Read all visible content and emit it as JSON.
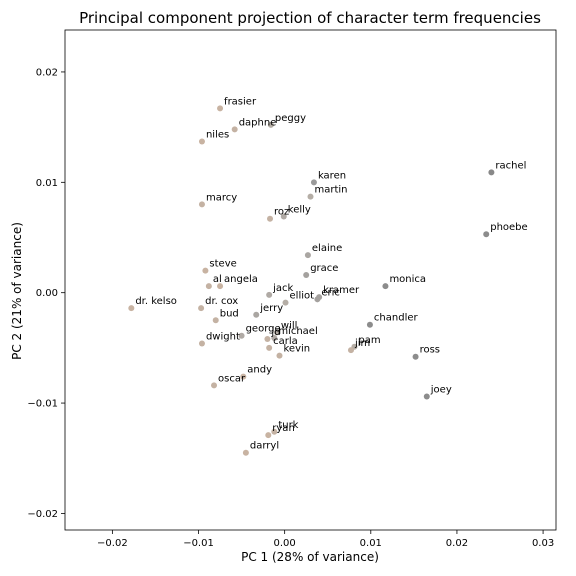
{
  "chart_data": {
    "type": "scatter",
    "title": "Principal component projection of character term frequencies",
    "xlabel": "PC 1 (28% of variance)",
    "ylabel": "PC 2 (21% of variance)",
    "xlim": [
      -0.0255,
      0.0315
    ],
    "ylim": [
      -0.0215,
      0.0238
    ],
    "xticks": [
      -0.02,
      -0.01,
      0.0,
      0.01,
      0.02,
      0.03
    ],
    "xtick_labels": [
      "−0.02",
      "−0.01",
      "0.00",
      "0.01",
      "0.02",
      "0.03"
    ],
    "yticks": [
      -0.02,
      -0.01,
      0.0,
      0.01,
      0.02
    ],
    "ytick_labels": [
      "−0.02",
      "−0.01",
      "0.00",
      "0.01",
      "0.02"
    ],
    "grid": false,
    "points": [
      {
        "label": "frasier",
        "x": -0.0075,
        "y": 0.0167,
        "color": "#c8b3a2"
      },
      {
        "label": "daphne",
        "x": -0.0058,
        "y": 0.0148,
        "color": "#c4b2a3"
      },
      {
        "label": "peggy",
        "x": -0.0016,
        "y": 0.0152,
        "color": "#b5aea6"
      },
      {
        "label": "niles",
        "x": -0.0096,
        "y": 0.0137,
        "color": "#c8b3a2"
      },
      {
        "label": "rachel",
        "x": 0.024,
        "y": 0.0109,
        "color": "#888888"
      },
      {
        "label": "karen",
        "x": 0.0034,
        "y": 0.01,
        "color": "#9a9a9a"
      },
      {
        "label": "martin",
        "x": 0.003,
        "y": 0.0087,
        "color": "#b5aea6"
      },
      {
        "label": "marcy",
        "x": -0.0096,
        "y": 0.008,
        "color": "#c4b2a3"
      },
      {
        "label": "kelly",
        "x": -0.0001,
        "y": 0.0069,
        "color": "#b0aaa5"
      },
      {
        "label": "roz",
        "x": -0.0017,
        "y": 0.0067,
        "color": "#c4b2a3"
      },
      {
        "label": "phoebe",
        "x": 0.0234,
        "y": 0.0053,
        "color": "#8c8c8c"
      },
      {
        "label": "elaine",
        "x": 0.0027,
        "y": 0.0034,
        "color": "#aaa6a2"
      },
      {
        "label": "grace",
        "x": 0.0025,
        "y": 0.0016,
        "color": "#a4a19e"
      },
      {
        "label": "steve",
        "x": -0.0092,
        "y": 0.002,
        "color": "#c8b3a2"
      },
      {
        "label": "al",
        "x": -0.0088,
        "y": 0.0006,
        "color": "#c4b2a3"
      },
      {
        "label": "angela",
        "x": -0.0075,
        "y": 0.0006,
        "color": "#c8b3a2"
      },
      {
        "label": "monica",
        "x": 0.0117,
        "y": 0.0006,
        "color": "#8c8c8c"
      },
      {
        "label": "jack",
        "x": -0.0018,
        "y": -0.0002,
        "color": "#b0aaa5"
      },
      {
        "label": "kramer",
        "x": 0.004,
        "y": -0.0004,
        "color": "#a4a19e"
      },
      {
        "label": "eric",
        "x": 0.0038,
        "y": -0.0006,
        "color": "#a4a19e"
      },
      {
        "label": "elliot",
        "x": 0.0001,
        "y": -0.0009,
        "color": "#b5aea6"
      },
      {
        "label": "dr. kelso",
        "x": -0.0178,
        "y": -0.0014,
        "color": "#c8b3a2"
      },
      {
        "label": "dr. cox",
        "x": -0.0097,
        "y": -0.0014,
        "color": "#c4b2a3"
      },
      {
        "label": "jerry",
        "x": -0.0033,
        "y": -0.002,
        "color": "#aaa6a2"
      },
      {
        "label": "bud",
        "x": -0.008,
        "y": -0.0025,
        "color": "#c4b2a3"
      },
      {
        "label": "chandler",
        "x": 0.0099,
        "y": -0.0029,
        "color": "#8c8c8c"
      },
      {
        "label": "will",
        "x": -0.0009,
        "y": -0.0036,
        "color": "#b5aea6"
      },
      {
        "label": "george",
        "x": -0.005,
        "y": -0.0039,
        "color": "#b0aaa5"
      },
      {
        "label": "michael",
        "x": -0.0012,
        "y": -0.0041,
        "color": "#b0aaa5"
      },
      {
        "label": "jd",
        "x": -0.002,
        "y": -0.0042,
        "color": "#c4b2a3"
      },
      {
        "label": "dwight",
        "x": -0.0096,
        "y": -0.0046,
        "color": "#c4b2a3"
      },
      {
        "label": "carla",
        "x": -0.0018,
        "y": -0.005,
        "color": "#c4b2a3"
      },
      {
        "label": "pam",
        "x": 0.0081,
        "y": -0.0049,
        "color": "#b5aea6"
      },
      {
        "label": "jim",
        "x": 0.0077,
        "y": -0.0052,
        "color": "#c4b2a3"
      },
      {
        "label": "kevin",
        "x": -0.0006,
        "y": -0.0057,
        "color": "#c4b2a3"
      },
      {
        "label": "ross",
        "x": 0.0152,
        "y": -0.0058,
        "color": "#8c8c8c"
      },
      {
        "label": "andy",
        "x": -0.0048,
        "y": -0.0076,
        "color": "#c8b3a2"
      },
      {
        "label": "oscar",
        "x": -0.0082,
        "y": -0.0084,
        "color": "#c4b2a3"
      },
      {
        "label": "joey",
        "x": 0.0165,
        "y": -0.0094,
        "color": "#8c8c8c"
      },
      {
        "label": "turk",
        "x": -0.0012,
        "y": -0.0126,
        "color": "#c4b2a3"
      },
      {
        "label": "ryan",
        "x": -0.0019,
        "y": -0.0129,
        "color": "#c8b3a2"
      },
      {
        "label": "darryl",
        "x": -0.0045,
        "y": -0.0145,
        "color": "#c8b3a2"
      }
    ]
  }
}
